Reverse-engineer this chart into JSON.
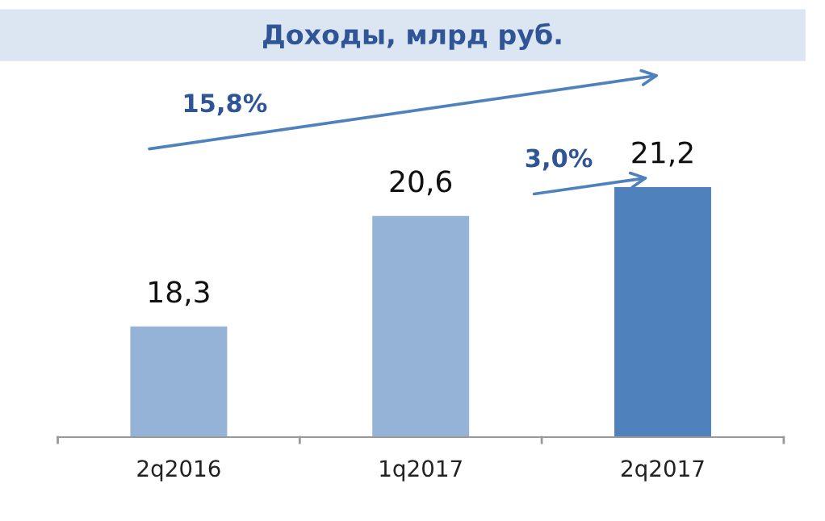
{
  "chart_data": {
    "type": "bar",
    "title": "Доходы, млрд руб.",
    "categories": [
      "2q2016",
      "1q2017",
      "2q2017"
    ],
    "values": [
      18.3,
      20.6,
      21.2
    ],
    "colors": [
      "#95b3d7",
      "#95b3d7",
      "#4f81bd"
    ],
    "ylim": [
      16,
      21.2
    ],
    "data_labels": true,
    "value_labels": [
      "18,3",
      "20,6",
      "21,2"
    ],
    "annotations": [
      "15,8%",
      "3,0%"
    ],
    "grid": false,
    "legend": false
  }
}
